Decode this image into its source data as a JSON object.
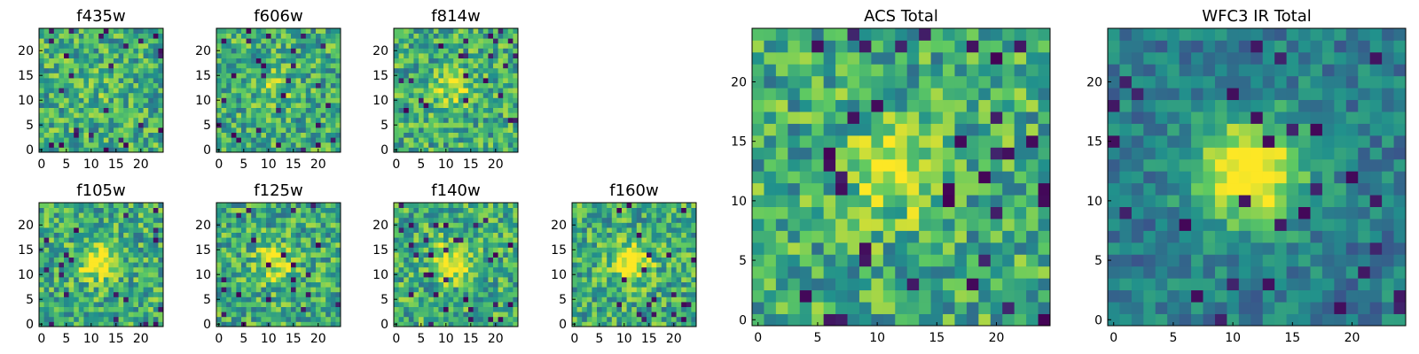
{
  "chart_data": [
    {
      "type": "heatmap",
      "title": "f435w",
      "grid_size": 25,
      "xticks": [
        0,
        5,
        10,
        15,
        20
      ],
      "yticks": [
        0,
        5,
        10,
        15,
        20
      ],
      "colormap": "viridis",
      "source_profile": "noise",
      "source_peak": 0.08
    },
    {
      "type": "heatmap",
      "title": "f606w",
      "grid_size": 25,
      "xticks": [
        0,
        5,
        10,
        15,
        20
      ],
      "yticks": [
        0,
        5,
        10,
        15,
        20
      ],
      "colormap": "viridis",
      "source_profile": "faint-central-source",
      "source_peak": 0.18
    },
    {
      "type": "heatmap",
      "title": "f814w",
      "grid_size": 25,
      "xticks": [
        0,
        5,
        10,
        15,
        20
      ],
      "yticks": [
        0,
        5,
        10,
        15,
        20
      ],
      "colormap": "viridis",
      "source_profile": "faint-central-source",
      "source_peak": 0.28
    },
    {
      "type": "heatmap",
      "title": "f105w",
      "grid_size": 25,
      "xticks": [
        0,
        5,
        10,
        15,
        20
      ],
      "yticks": [
        0,
        5,
        10,
        15,
        20
      ],
      "colormap": "viridis",
      "source_profile": "central-source",
      "source_peak": 0.45
    },
    {
      "type": "heatmap",
      "title": "f125w",
      "grid_size": 25,
      "xticks": [
        0,
        5,
        10,
        15,
        20
      ],
      "yticks": [
        0,
        5,
        10,
        15,
        20
      ],
      "colormap": "viridis",
      "source_profile": "central-source",
      "source_peak": 0.35
    },
    {
      "type": "heatmap",
      "title": "f140w",
      "grid_size": 25,
      "xticks": [
        0,
        5,
        10,
        15,
        20
      ],
      "yticks": [
        0,
        5,
        10,
        15,
        20
      ],
      "colormap": "viridis",
      "source_profile": "central-source",
      "source_peak": 0.45
    },
    {
      "type": "heatmap",
      "title": "f160w",
      "grid_size": 25,
      "xticks": [
        0,
        5,
        10,
        15,
        20
      ],
      "yticks": [
        0,
        5,
        10,
        15,
        20
      ],
      "colormap": "viridis",
      "source_profile": "central-source",
      "source_peak": 0.5
    },
    {
      "type": "heatmap",
      "title": "ACS Total",
      "grid_size": 25,
      "xticks": [
        0,
        5,
        10,
        15,
        20
      ],
      "yticks": [
        0,
        5,
        10,
        15,
        20
      ],
      "colormap": "viridis",
      "source_profile": "central-source",
      "source_peak": 0.35
    },
    {
      "type": "heatmap",
      "title": "WFC3 IR Total",
      "grid_size": 25,
      "xticks": [
        0,
        5,
        10,
        15,
        20
      ],
      "yticks": [
        0,
        5,
        10,
        15,
        20
      ],
      "colormap": "viridis",
      "source_profile": "bright-central-source",
      "source_peak": 0.7
    }
  ],
  "colors": {
    "viridis": [
      "#440154",
      "#3b528b",
      "#21918c",
      "#5ec962",
      "#fde725"
    ],
    "frame": "#000000",
    "background": "#ffffff"
  }
}
